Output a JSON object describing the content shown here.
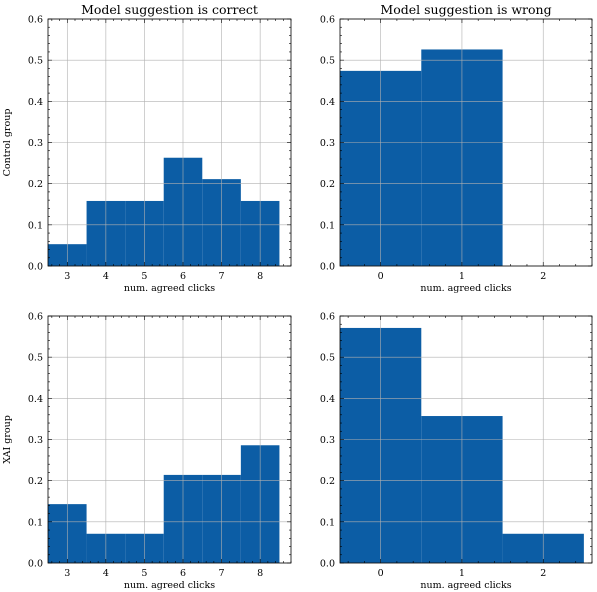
{
  "chart_data": [
    {
      "type": "bar",
      "title": "Model suggestion is correct",
      "xlabel": "num. agreed clicks",
      "ylabel": "Control group",
      "x": [
        3,
        4,
        5,
        6,
        7,
        8
      ],
      "values": [
        0.053,
        0.158,
        0.158,
        0.263,
        0.211,
        0.158
      ],
      "xlim": [
        2.5,
        8.8
      ],
      "xticks": [
        3,
        4,
        5,
        6,
        7,
        8
      ],
      "ylim": [
        0,
        0.6
      ],
      "yticks": [
        0.0,
        0.1,
        0.2,
        0.3,
        0.4,
        0.5,
        0.6
      ],
      "grid": true,
      "bar_color": "#0c5da5"
    },
    {
      "type": "bar",
      "title": "Model suggestion is wrong",
      "xlabel": "num. agreed clicks",
      "ylabel": "",
      "x": [
        0,
        1
      ],
      "values": [
        0.474,
        0.526
      ],
      "xlim": [
        -0.5,
        2.6
      ],
      "xticks": [
        0,
        1,
        2
      ],
      "ylim": [
        0,
        0.6
      ],
      "yticks": [
        0.0,
        0.1,
        0.2,
        0.3,
        0.4,
        0.5,
        0.6
      ],
      "grid": true,
      "bar_color": "#0c5da5"
    },
    {
      "type": "bar",
      "title": "",
      "xlabel": "num. agreed clicks",
      "ylabel": "XAI group",
      "x": [
        3,
        4,
        5,
        6,
        7,
        8
      ],
      "values": [
        0.143,
        0.071,
        0.071,
        0.214,
        0.214,
        0.286
      ],
      "xlim": [
        2.5,
        8.8
      ],
      "xticks": [
        3,
        4,
        5,
        6,
        7,
        8
      ],
      "ylim": [
        0,
        0.6
      ],
      "yticks": [
        0.0,
        0.1,
        0.2,
        0.3,
        0.4,
        0.5,
        0.6
      ],
      "grid": true,
      "bar_color": "#0c5da5"
    },
    {
      "type": "bar",
      "title": "",
      "xlabel": "num. agreed clicks",
      "ylabel": "",
      "x": [
        0,
        1,
        2
      ],
      "values": [
        0.571,
        0.357,
        0.071
      ],
      "xlim": [
        -0.5,
        2.6
      ],
      "xticks": [
        0,
        1,
        2
      ],
      "ylim": [
        0,
        0.6
      ],
      "yticks": [
        0.0,
        0.1,
        0.2,
        0.3,
        0.4,
        0.5,
        0.6
      ],
      "grid": true,
      "bar_color": "#0c5da5"
    }
  ]
}
